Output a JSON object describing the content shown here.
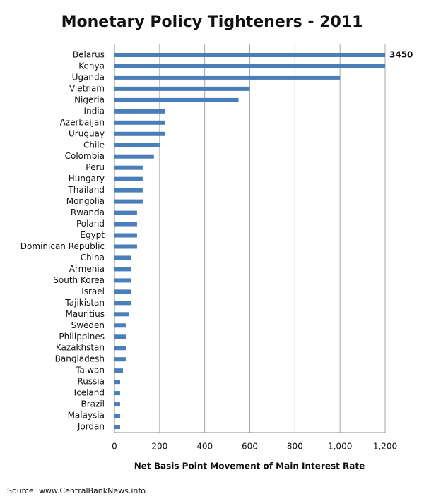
{
  "chart_data": {
    "type": "hbar",
    "title": "Monetary Policy Tighteners - 2011",
    "x_label": "Net Basis  Point Movement  of Main  Interest Rate",
    "source": "Source: www.CentralBankNews.info",
    "categories": [
      "Belarus",
      "Kenya",
      "Uganda",
      "Vietnam",
      "Nigeria",
      "India",
      "Azerbaijan",
      "Uruguay",
      "Chile",
      "Colombia",
      "Peru",
      "Hungary",
      "Thailand",
      "Mongolia",
      "Rwanda",
      "Poland",
      "Egypt",
      "Dominican Republic",
      "China",
      "Armenia",
      "South Korea",
      "Israel",
      "Tajikistan",
      "Mauritius",
      "Sweden",
      "Philippines",
      "Kazakhstan",
      "Bangladesh",
      "Taiwan",
      "Russia",
      "Iceland",
      "Brazil",
      "Malaysia",
      "Jordan"
    ],
    "values": [
      3450,
      1225,
      1000,
      600,
      550,
      225,
      225,
      225,
      200,
      175,
      125,
      125,
      125,
      125,
      100,
      100,
      100,
      100,
      75,
      75,
      75,
      75,
      75,
      65,
      50,
      50,
      50,
      50,
      37.5,
      25,
      25,
      25,
      25,
      25
    ],
    "value_labels": [
      "3450",
      null,
      null,
      null,
      null,
      null,
      null,
      null,
      null,
      null,
      null,
      null,
      null,
      null,
      null,
      null,
      null,
      null,
      null,
      null,
      null,
      null,
      null,
      null,
      null,
      null,
      null,
      null,
      null,
      null,
      null,
      null,
      null,
      null
    ],
    "color": "#4a7ebb",
    "xlim": [
      0,
      1200
    ],
    "xticks": [
      0,
      200,
      400,
      600,
      800,
      {
        "value": 1000,
        "label": "1,000"
      },
      {
        "value": 1200,
        "label": "1,200"
      }
    ],
    "grid": true
  }
}
